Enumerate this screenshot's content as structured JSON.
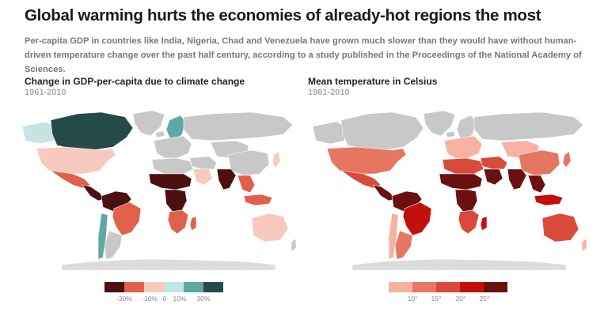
{
  "title": "Global warming hurts the economies of already-hot regions the most",
  "subtitle": "Per-capita GDP in countries like India, Nigeria, Chad and Venezuela have grown much slower than they would have without human-driven temperature change over the past half century, according to a study published in the Proceedings of the National Academy of Sciences.",
  "maps": [
    {
      "title": "Change in GDP-per-capita due to climate change",
      "period": "1961-2010",
      "legend": {
        "colors": [
          "#4d1010",
          "#e0604b",
          "#f7c9bf",
          "#c6e4e2",
          "#5fa7a3",
          "#254b49"
        ],
        "labels": [
          "-30%",
          "-10%",
          "0",
          "10%",
          "30%"
        ]
      },
      "region_colors": {
        "canada": "#254b49",
        "alaska": "#c6e4e2",
        "usa": "#f7c9bf",
        "mexico": "#e0604b",
        "central_america": "#4d1010",
        "south_america_north": "#4d1010",
        "brazil": "#e0604b",
        "south_america_south": "#c8c8c8",
        "chile": "#5fa7a3",
        "greenland": "#c8c8c8",
        "iceland": "#c8c8c8",
        "scandinavia": "#5fa7a3",
        "europe": "#c8c8c8",
        "russia": "#c8c8c8",
        "north_africa": "#c8c8c8",
        "sahel": "#4d1010",
        "central_africa": "#4d1010",
        "southern_africa": "#e0604b",
        "madagascar": "#e0604b",
        "middle_east": "#c8c8c8",
        "arabia": "#f7c9bf",
        "india": "#4d1010",
        "central_asia": "#c8c8c8",
        "china": "#c8c8c8",
        "southeast_asia": "#e0604b",
        "indonesia": "#e0604b",
        "australia": "#f7c9bf",
        "japan": "#f7c9bf",
        "new_zealand": "#c8c8c8",
        "antarctica": "#dcdcdc"
      }
    },
    {
      "title": "Mean temperature in Celsius",
      "period": "1961-2010",
      "legend": {
        "colors": [
          "#f7b2a2",
          "#e67561",
          "#d94a3a",
          "#c4100c",
          "#6b1010"
        ],
        "labels": [
          "10°",
          "15°",
          "20°",
          "25°"
        ]
      },
      "region_colors": {
        "canada": "#c8c8c8",
        "alaska": "#c8c8c8",
        "usa": "#e67561",
        "mexico": "#d94a3a",
        "central_america": "#6b1010",
        "south_america_north": "#6b1010",
        "brazil": "#c4100c",
        "south_america_south": "#e67561",
        "chile": "#f7b2a2",
        "greenland": "#c8c8c8",
        "iceland": "#c8c8c8",
        "scandinavia": "#c8c8c8",
        "europe": "#f7b2a2",
        "russia": "#c8c8c8",
        "north_africa": "#d94a3a",
        "sahel": "#6b1010",
        "central_africa": "#6b1010",
        "southern_africa": "#d94a3a",
        "madagascar": "#c4100c",
        "middle_east": "#d94a3a",
        "arabia": "#6b1010",
        "india": "#6b1010",
        "central_asia": "#f7b2a2",
        "china": "#e67561",
        "southeast_asia": "#6b1010",
        "indonesia": "#c4100c",
        "australia": "#d94a3a",
        "japan": "#e67561",
        "new_zealand": "#f7b2a2",
        "antarctica": "#dcdcdc"
      }
    }
  ]
}
